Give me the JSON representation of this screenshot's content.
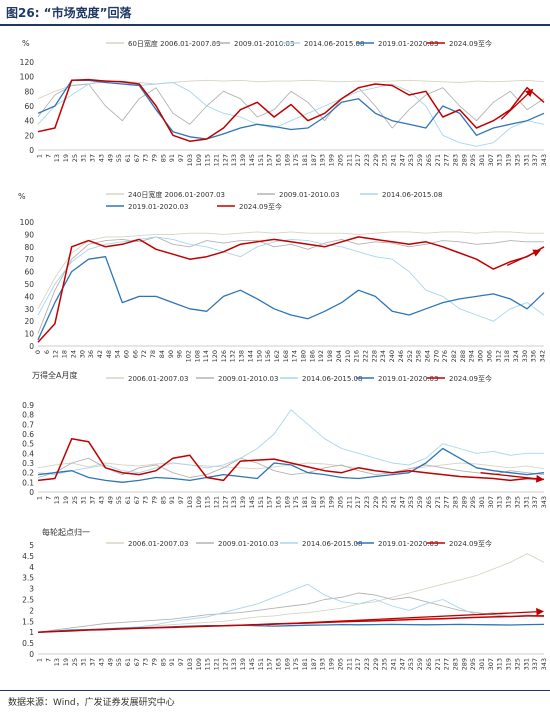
{
  "figure": {
    "title": "图26: “市场宽度”回落",
    "source": "数据来源：Wind，广发证券发展研究中心"
  },
  "chart_data": [
    {
      "type": "line",
      "y_unit": "%",
      "ylim": [
        0,
        120
      ],
      "yticks": [
        0,
        20,
        40,
        60,
        80,
        100,
        120
      ],
      "xticks": [
        "1",
        "7",
        "13",
        "19",
        "25",
        "31",
        "37",
        "43",
        "49",
        "55",
        "61",
        "67",
        "73",
        "79",
        "85",
        "91",
        "97",
        "103",
        "109",
        "115",
        "121",
        "127",
        "133",
        "139",
        "145",
        "151",
        "157",
        "163",
        "169",
        "175",
        "181",
        "187",
        "193",
        "199",
        "205",
        "211",
        "217",
        "223",
        "229",
        "235",
        "241",
        "247",
        "253",
        "259",
        "265",
        "271",
        "277",
        "283",
        "289",
        "295",
        "301",
        "307",
        "313",
        "319",
        "325",
        "331",
        "337",
        "343"
      ],
      "legend_rows": [
        [
          "s0",
          "s1",
          "s2",
          "s3",
          "s4"
        ]
      ],
      "series": [
        {
          "key": "s0",
          "name": "60日宽度 2006.01-2007.03",
          "color": "#d8d4c2",
          "width": 0.9,
          "values": [
            70,
            80,
            88,
            90,
            93,
            94,
            92,
            90,
            92,
            94,
            95,
            94,
            95,
            93,
            94,
            94,
            95,
            94,
            93,
            94,
            93,
            94,
            95,
            94,
            93,
            92,
            94,
            93,
            94,
            95,
            93
          ]
        },
        {
          "key": "s1",
          "name": "2009.01-2010.03",
          "color": "#b3b3b3",
          "width": 0.9,
          "values": [
            45,
            75,
            88,
            90,
            60,
            40,
            70,
            85,
            50,
            35,
            60,
            80,
            70,
            45,
            55,
            80,
            65,
            40,
            70,
            85,
            60,
            30,
            55,
            75,
            85,
            60,
            40,
            65,
            80,
            55,
            70
          ]
        },
        {
          "key": "s2",
          "name": "2014.06-2015.08",
          "color": "#a9d6ea",
          "width": 0.9,
          "values": [
            35,
            60,
            75,
            90,
            95,
            92,
            88,
            90,
            92,
            80,
            60,
            50,
            45,
            35,
            30,
            40,
            50,
            60,
            70,
            80,
            85,
            90,
            80,
            60,
            20,
            10,
            5,
            10,
            30,
            40,
            35
          ]
        },
        {
          "key": "s3",
          "name": "2019.01-2020.03",
          "color": "#2e75b6",
          "width": 1.3,
          "values": [
            50,
            60,
            95,
            95,
            92,
            90,
            88,
            55,
            25,
            18,
            15,
            22,
            30,
            35,
            32,
            28,
            30,
            45,
            65,
            70,
            50,
            40,
            35,
            30,
            60,
            50,
            20,
            30,
            35,
            40,
            50
          ]
        },
        {
          "key": "s4",
          "name": "2024.09至今",
          "color": "#c00000",
          "width": 1.5,
          "values": [
            25,
            30,
            95,
            96,
            94,
            93,
            90,
            60,
            20,
            12,
            15,
            30,
            55,
            65,
            45,
            62,
            40,
            50,
            70,
            85,
            90,
            88,
            75,
            80,
            45,
            55,
            30,
            40,
            55,
            85,
            65
          ]
        }
      ],
      "arrows": [
        {
          "from": [
            314,
            42
          ],
          "to": [
            335,
            82
          ]
        }
      ]
    },
    {
      "type": "line",
      "y_unit": "%",
      "ylim": [
        0,
        100
      ],
      "yticks": [
        0,
        10,
        20,
        30,
        40,
        50,
        60,
        70,
        80,
        90,
        100
      ],
      "xticks": [
        "0",
        "6",
        "12",
        "18",
        "24",
        "30",
        "36",
        "42",
        "48",
        "54",
        "60",
        "66",
        "72",
        "78",
        "84",
        "90",
        "96",
        "102",
        "108",
        "114",
        "120",
        "126",
        "132",
        "138",
        "144",
        "150",
        "156",
        "162",
        "168",
        "174",
        "180",
        "186",
        "192",
        "198",
        "204",
        "210",
        "216",
        "222",
        "228",
        "234",
        "240",
        "246",
        "252",
        "258",
        "264",
        "270",
        "276",
        "282",
        "288",
        "294",
        "300",
        "306",
        "312",
        "318",
        "324",
        "330",
        "336",
        "342"
      ],
      "legend_rows": [
        [
          "s0",
          "s1",
          "s2"
        ],
        [
          "s3",
          "s4"
        ]
      ],
      "series": [
        {
          "key": "s0",
          "name": "240日宽度 2006.01-2007.03",
          "color": "#d8d4c2",
          "width": 0.9,
          "values": [
            30,
            55,
            75,
            85,
            88,
            88,
            89,
            90,
            90,
            91,
            91,
            90,
            91,
            92,
            91,
            92,
            91,
            91,
            91,
            90,
            91,
            92,
            92,
            91,
            92,
            92,
            91,
            92,
            92,
            91,
            91
          ]
        },
        {
          "key": "s1",
          "name": "2009.01-2010.03",
          "color": "#b3b3b3",
          "width": 0.9,
          "values": [
            10,
            45,
            70,
            82,
            85,
            86,
            84,
            88,
            82,
            80,
            85,
            83,
            85,
            85,
            80,
            82,
            78,
            83,
            86,
            82,
            84,
            83,
            80,
            82,
            85,
            84,
            82,
            83,
            85,
            84,
            84
          ]
        },
        {
          "key": "s2",
          "name": "2014.06-2015.08",
          "color": "#a9d6ea",
          "width": 0.9,
          "values": [
            25,
            50,
            68,
            78,
            82,
            84,
            86,
            88,
            86,
            82,
            80,
            76,
            72,
            80,
            84,
            86,
            85,
            82,
            80,
            76,
            72,
            70,
            60,
            45,
            40,
            30,
            25,
            20,
            30,
            35,
            25
          ]
        },
        {
          "key": "s3",
          "name": "2019.01-2020.03",
          "color": "#2e75b6",
          "width": 1.3,
          "values": [
            5,
            35,
            60,
            70,
            72,
            35,
            40,
            40,
            35,
            30,
            28,
            40,
            45,
            38,
            30,
            25,
            22,
            28,
            35,
            45,
            40,
            28,
            25,
            30,
            35,
            38,
            40,
            42,
            38,
            30,
            43
          ]
        },
        {
          "key": "s4",
          "name": "2024.09至今",
          "color": "#c00000",
          "width": 1.5,
          "values": [
            3,
            18,
            80,
            85,
            80,
            82,
            86,
            78,
            74,
            70,
            72,
            76,
            82,
            84,
            86,
            84,
            82,
            80,
            84,
            88,
            86,
            84,
            82,
            84,
            80,
            75,
            70,
            62,
            68,
            72,
            80
          ]
        }
      ],
      "arrows": [
        {
          "from": [
            318,
            65
          ],
          "to": [
            340,
            77
          ]
        }
      ]
    },
    {
      "type": "line",
      "title": "万得全A月度",
      "ylim": [
        0,
        0.9
      ],
      "yticks": [
        0,
        0.1,
        0.2,
        0.3,
        0.4,
        0.5,
        0.6,
        0.7,
        0.8,
        0.9
      ],
      "xticks": [
        "1",
        "7",
        "13",
        "19",
        "25",
        "31",
        "37",
        "43",
        "49",
        "55",
        "61",
        "67",
        "73",
        "79",
        "85",
        "91",
        "97",
        "103",
        "109",
        "115",
        "121",
        "127",
        "133",
        "139",
        "145",
        "151",
        "157",
        "163",
        "169",
        "175",
        "181",
        "187",
        "193",
        "199",
        "205",
        "211",
        "217",
        "223",
        "229",
        "235",
        "241",
        "247",
        "253",
        "259",
        "265",
        "271",
        "277",
        "283",
        "289",
        "295",
        "301",
        "307",
        "313",
        "319",
        "325",
        "331",
        "337",
        "343"
      ],
      "legend_rows": [
        [
          "s0",
          "s1",
          "s2",
          "s3",
          "s4"
        ]
      ],
      "series": [
        {
          "key": "s0",
          "name": "2006.01-2007.03",
          "color": "#d8d4c2",
          "width": 0.9,
          "values": [
            0.25,
            0.28,
            0.3,
            0.26,
            0.3,
            0.28,
            0.27,
            0.29,
            0.3,
            0.28,
            0.27,
            0.26,
            0.25,
            0.24,
            0.26,
            0.28,
            0.3,
            0.29,
            0.27,
            0.25,
            0.22,
            0.2,
            0.24,
            0.26,
            0.28,
            0.3,
            0.29,
            0.27,
            0.25,
            0.27,
            0.24
          ]
        },
        {
          "key": "s1",
          "name": "2009.01-2010.03",
          "color": "#b3b3b3",
          "width": 0.9,
          "values": [
            0.15,
            0.2,
            0.3,
            0.35,
            0.25,
            0.18,
            0.25,
            0.28,
            0.2,
            0.15,
            0.18,
            0.25,
            0.35,
            0.3,
            0.22,
            0.18,
            0.2,
            0.25,
            0.28,
            0.22,
            0.18,
            0.2,
            0.24,
            0.28,
            0.25,
            0.22,
            0.2,
            0.18,
            0.22,
            0.2,
            0.18
          ]
        },
        {
          "key": "s2",
          "name": "2014.06-2015.08",
          "color": "#a9d6ea",
          "width": 0.9,
          "values": [
            0.2,
            0.18,
            0.22,
            0.25,
            0.28,
            0.22,
            0.2,
            0.25,
            0.3,
            0.28,
            0.25,
            0.28,
            0.35,
            0.45,
            0.6,
            0.85,
            0.7,
            0.55,
            0.45,
            0.4,
            0.35,
            0.3,
            0.28,
            0.35,
            0.5,
            0.45,
            0.4,
            0.42,
            0.38,
            0.4,
            0.4
          ]
        },
        {
          "key": "s3",
          "name": "2019.01-2020.03",
          "color": "#2e75b6",
          "width": 1.3,
          "values": [
            0.18,
            0.2,
            0.22,
            0.15,
            0.12,
            0.1,
            0.12,
            0.15,
            0.14,
            0.12,
            0.15,
            0.18,
            0.16,
            0.14,
            0.3,
            0.28,
            0.2,
            0.18,
            0.15,
            0.14,
            0.16,
            0.18,
            0.2,
            0.3,
            0.45,
            0.35,
            0.25,
            0.22,
            0.2,
            0.18,
            0.2
          ]
        },
        {
          "key": "s4",
          "name": "2024.09至今",
          "color": "#c00000",
          "width": 1.5,
          "values": [
            0.12,
            0.14,
            0.55,
            0.52,
            0.25,
            0.2,
            0.18,
            0.22,
            0.35,
            0.38,
            0.15,
            0.12,
            0.32,
            0.33,
            0.34,
            0.3,
            0.26,
            0.22,
            0.2,
            0.25,
            0.22,
            0.2,
            0.22,
            0.2,
            0.18,
            0.16,
            0.15,
            0.14,
            0.12,
            0.14,
            0.13
          ]
        }
      ],
      "arrows": [
        {
          "from": [
            300,
            0.2
          ],
          "to": [
            342,
            0.13
          ]
        }
      ]
    },
    {
      "type": "line",
      "title": "每轮起点归一",
      "ylim": [
        0,
        5
      ],
      "yticks": [
        0,
        0.5,
        1,
        1.5,
        2,
        2.5,
        3,
        3.5,
        4,
        4.5,
        5
      ],
      "xticks": [
        "1",
        "7",
        "13",
        "19",
        "25",
        "31",
        "37",
        "43",
        "49",
        "55",
        "61",
        "67",
        "73",
        "79",
        "85",
        "91",
        "97",
        "103",
        "109",
        "115",
        "121",
        "127",
        "133",
        "139",
        "145",
        "151",
        "157",
        "163",
        "169",
        "175",
        "181",
        "187",
        "193",
        "199",
        "205",
        "211",
        "217",
        "223",
        "229",
        "235",
        "241",
        "247",
        "253",
        "259",
        "265",
        "271",
        "277",
        "283",
        "289",
        "295",
        "301",
        "307",
        "313",
        "319",
        "325",
        "331",
        "337",
        "343"
      ],
      "legend_rows": [
        [
          "s0",
          "s1",
          "s2",
          "s3",
          "s4"
        ]
      ],
      "series": [
        {
          "key": "s0",
          "name": "2006.01-2007.03",
          "color": "#d8d4c2",
          "width": 0.9,
          "values": [
            1.0,
            1.05,
            1.1,
            1.1,
            1.15,
            1.2,
            1.25,
            1.3,
            1.35,
            1.4,
            1.45,
            1.5,
            1.6,
            1.7,
            1.75,
            1.85,
            1.9,
            2.0,
            2.1,
            2.3,
            2.4,
            2.6,
            2.8,
            3.0,
            3.2,
            3.4,
            3.6,
            3.9,
            4.2,
            4.6,
            4.2
          ]
        },
        {
          "key": "s1",
          "name": "2009.01-2010.03",
          "color": "#b3b3b3",
          "width": 0.9,
          "values": [
            1.0,
            1.1,
            1.2,
            1.3,
            1.4,
            1.45,
            1.5,
            1.55,
            1.6,
            1.7,
            1.8,
            1.85,
            1.9,
            2.0,
            2.1,
            2.2,
            2.3,
            2.5,
            2.6,
            2.8,
            2.7,
            2.5,
            2.6,
            2.4,
            2.2,
            2.0,
            1.9,
            1.8,
            1.7,
            1.75,
            1.7
          ]
        },
        {
          "key": "s2",
          "name": "2014.06-2015.08",
          "color": "#a9d6ea",
          "width": 0.9,
          "values": [
            1.0,
            1.02,
            1.05,
            1.1,
            1.15,
            1.2,
            1.25,
            1.35,
            1.5,
            1.6,
            1.7,
            1.9,
            2.1,
            2.3,
            2.6,
            2.9,
            3.2,
            2.7,
            2.4,
            2.3,
            2.5,
            2.2,
            2.0,
            2.3,
            2.5,
            2.1,
            1.8,
            1.9,
            1.7,
            1.8,
            1.75
          ]
        },
        {
          "key": "s3",
          "name": "2019.01-2020.03",
          "color": "#2e75b6",
          "width": 1.3,
          "values": [
            1.0,
            1.05,
            1.1,
            1.12,
            1.15,
            1.18,
            1.2,
            1.22,
            1.25,
            1.28,
            1.3,
            1.3,
            1.32,
            1.3,
            1.28,
            1.3,
            1.32,
            1.33,
            1.35,
            1.34,
            1.35,
            1.36,
            1.35,
            1.34,
            1.35,
            1.36,
            1.35,
            1.34,
            1.33,
            1.35,
            1.36
          ]
        },
        {
          "key": "s4",
          "name": "2024.09至今",
          "color": "#c00000",
          "width": 1.5,
          "values": [
            1.0,
            1.03,
            1.06,
            1.1,
            1.12,
            1.15,
            1.18,
            1.2,
            1.22,
            1.25,
            1.27,
            1.3,
            1.32,
            1.35,
            1.38,
            1.4,
            1.42,
            1.45,
            1.48,
            1.5,
            1.52,
            1.55,
            1.58,
            1.6,
            1.62,
            1.65,
            1.68,
            1.7,
            1.72,
            1.75,
            1.75
          ]
        }
      ],
      "arrows": [
        {
          "from": [
            155,
            1.35
          ],
          "to": [
            342,
            1.95
          ]
        }
      ]
    }
  ]
}
